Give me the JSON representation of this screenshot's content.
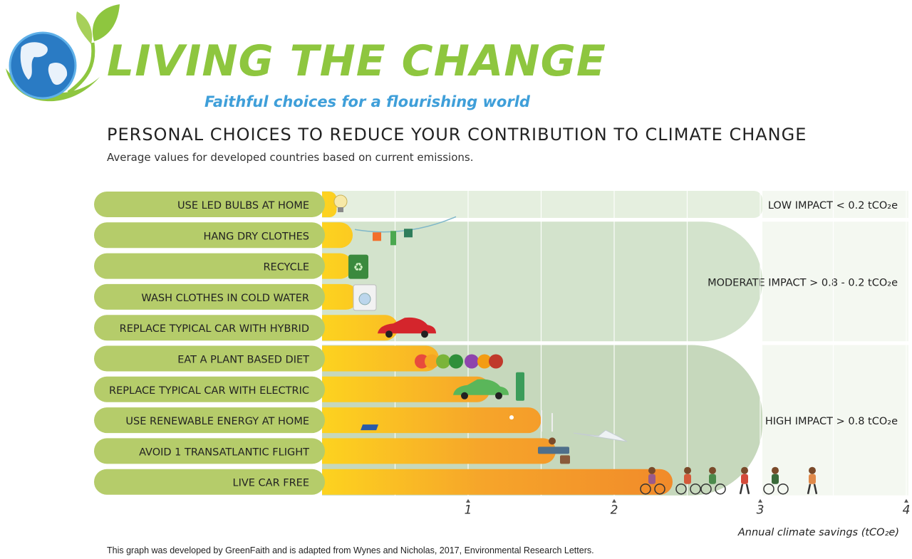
{
  "brand": {
    "title": "LIVING THE CHANGE",
    "subtitle": "Faithful choices for a flourishing world"
  },
  "colors": {
    "brand_green": "#8ec63f",
    "brand_blue": "#3f9fd9",
    "label_pill": "#b5cc6a",
    "bar_start": "#fdd31f",
    "bar_end": "#f18a2a",
    "band_low": "#e5efdf",
    "band_moderate": "#d3e3cc",
    "band_high": "#c6d8bc"
  },
  "chart_data": {
    "type": "bar",
    "orientation": "horizontal",
    "title": "PERSONAL CHOICES TO REDUCE YOUR CONTRIBUTION TO CLIMATE CHANGE",
    "subtitle": "Average values for developed countries based on current emissions.",
    "xlabel": "Annual climate savings (tCO₂e)",
    "xlim": [
      0,
      4
    ],
    "xticks": [
      "1",
      "2",
      "3",
      "4"
    ],
    "grid": true,
    "categories": [
      "USE LED BULBS AT HOME",
      "HANG DRY CLOTHES",
      "RECYCLE",
      "WASH CLOTHES IN COLD WATER",
      "REPLACE TYPICAL CAR WITH HYBRID",
      "EAT A PLANT BASED DIET",
      "REPLACE TYPICAL CAR WITH ELECTRIC",
      "USE RENEWABLE ENERGY AT HOME",
      "AVOID 1 TRANSATLANTIC FLIGHT",
      "LIVE CAR FREE"
    ],
    "values": [
      0.1,
      0.21,
      0.21,
      0.25,
      0.52,
      0.8,
      1.15,
      1.5,
      1.6,
      2.4
    ],
    "impact_bands": [
      {
        "label": "LOW IMPACT < 0.2 tCO₂e",
        "rows": [
          0,
          0
        ]
      },
      {
        "label": "MODERATE IMPACT  > 0.8 - 0.2 tCO₂e",
        "rows": [
          1,
          4
        ]
      },
      {
        "label": "HIGH IMPACT  > 0.8 tCO₂e",
        "rows": [
          5,
          9
        ]
      }
    ]
  },
  "footnote": "This graph was developed by GreenFaith and is adapted from Wynes and Nicholas, 2017, Environmental Research Letters."
}
